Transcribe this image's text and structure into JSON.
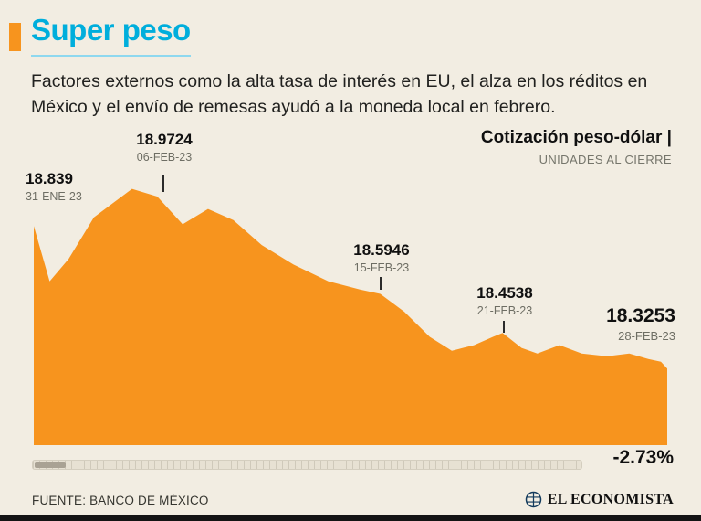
{
  "colors": {
    "background": "#F2EDE2",
    "accent": "#00AEDC",
    "accent_underline": "#8ED8EF",
    "orange": "#F7941E",
    "text_dark": "#101010",
    "text_gray": "#6E6E64"
  },
  "header": {
    "title": "Super peso",
    "description": "Factores externos como la alta tasa de interés en EU, el alza en los réditos en México y el envío de remesas ayudó a la moneda local en febrero."
  },
  "chart_header": {
    "title": "Cotización peso-dólar",
    "separator": "|",
    "subtitle": "UNIDADES AL CIERRE"
  },
  "chart_data": {
    "type": "area",
    "title": "Cotización peso-dólar",
    "subtitle": "UNIDADES AL CIERRE",
    "color": "#F7941E",
    "ylim": [
      18.05,
      19.06
    ],
    "axes_hidden": true,
    "grid": false,
    "change_pct": "-2.73%",
    "labeled_points": [
      {
        "date": "31-ENE-23",
        "value": "18.839"
      },
      {
        "date": "06-FEB-23",
        "value": "18.9724"
      },
      {
        "date": "15-FEB-23",
        "value": "18.5946"
      },
      {
        "date": "21-FEB-23",
        "value": "18.4538"
      },
      {
        "date": "28-FEB-23",
        "value": "18.3253"
      }
    ],
    "points": [
      {
        "x": 0.0,
        "v": 18.839
      },
      {
        "x": 0.025,
        "v": 18.64
      },
      {
        "x": 0.055,
        "v": 18.72
      },
      {
        "x": 0.095,
        "v": 18.87
      },
      {
        "x": 0.155,
        "v": 18.9724
      },
      {
        "x": 0.195,
        "v": 18.945
      },
      {
        "x": 0.235,
        "v": 18.845
      },
      {
        "x": 0.275,
        "v": 18.9
      },
      {
        "x": 0.315,
        "v": 18.86
      },
      {
        "x": 0.36,
        "v": 18.77
      },
      {
        "x": 0.41,
        "v": 18.7
      },
      {
        "x": 0.465,
        "v": 18.64
      },
      {
        "x": 0.515,
        "v": 18.61
      },
      {
        "x": 0.547,
        "v": 18.5946
      },
      {
        "x": 0.585,
        "v": 18.53
      },
      {
        "x": 0.625,
        "v": 18.44
      },
      {
        "x": 0.66,
        "v": 18.39
      },
      {
        "x": 0.695,
        "v": 18.41
      },
      {
        "x": 0.725,
        "v": 18.44
      },
      {
        "x": 0.74,
        "v": 18.4538
      },
      {
        "x": 0.77,
        "v": 18.4
      },
      {
        "x": 0.795,
        "v": 18.38
      },
      {
        "x": 0.83,
        "v": 18.41
      },
      {
        "x": 0.865,
        "v": 18.38
      },
      {
        "x": 0.905,
        "v": 18.37
      },
      {
        "x": 0.94,
        "v": 18.38
      },
      {
        "x": 0.97,
        "v": 18.36
      },
      {
        "x": 0.99,
        "v": 18.35
      },
      {
        "x": 1.0,
        "v": 18.3253
      }
    ]
  },
  "footer": {
    "source": "FUENTE: BANCO DE MÉXICO",
    "brand": "EL ECONOMISTA"
  }
}
